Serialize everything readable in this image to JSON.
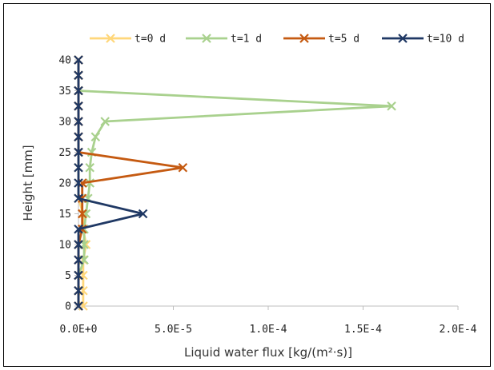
{
  "chart_data": {
    "type": "line",
    "title": "",
    "xlabel": "Liquid water flux [kg/(m²·s)]",
    "ylabel": "Height [mm]",
    "xlim": [
      0,
      0.0002
    ],
    "ylim": [
      0,
      40
    ],
    "x_ticks": [
      0,
      5e-05,
      0.0001,
      0.00015,
      0.0002
    ],
    "x_tick_labels": [
      "0.0E+0",
      "5.0E-5",
      "1.0E-4",
      "1.5E-4",
      "2.0E-4"
    ],
    "y_ticks": [
      0,
      5,
      10,
      15,
      20,
      25,
      30,
      35,
      40
    ],
    "y_tick_labels": [
      "0",
      "5",
      "10",
      "15",
      "20",
      "25",
      "30",
      "35",
      "40"
    ],
    "grid": false,
    "legend_position": "top",
    "series": [
      {
        "name": "t=0 d",
        "color": "#FFD77A",
        "marker": "x",
        "points": [
          [
            2.5e-06,
            0
          ],
          [
            2.5e-06,
            2.5
          ],
          [
            2.5e-06,
            5
          ],
          [
            2.5e-06,
            7.5
          ],
          [
            4e-06,
            10
          ],
          [
            2.5e-06,
            12.5
          ],
          [
            2.5e-06,
            15
          ],
          [
            0,
            17.5
          ],
          [
            0,
            20
          ],
          [
            0,
            22.5
          ],
          [
            0,
            25
          ],
          [
            0,
            27.5
          ],
          [
            0,
            30
          ],
          [
            0,
            32.5
          ],
          [
            0,
            35
          ],
          [
            0,
            37.5
          ],
          [
            0,
            40
          ]
        ]
      },
      {
        "name": "t=1 d",
        "color": "#A9D18E",
        "marker": "x",
        "points": [
          [
            0,
            0
          ],
          [
            0,
            2.5
          ],
          [
            0,
            5
          ],
          [
            3e-06,
            7.5
          ],
          [
            3e-06,
            10
          ],
          [
            3e-06,
            12.5
          ],
          [
            4e-06,
            15
          ],
          [
            5e-06,
            17.5
          ],
          [
            6e-06,
            20
          ],
          [
            6e-06,
            22.5
          ],
          [
            7e-06,
            25
          ],
          [
            9e-06,
            27.5
          ],
          [
            1.4e-05,
            30
          ],
          [
            0.000165,
            32.5
          ],
          [
            0,
            35
          ],
          [
            0,
            37.5
          ],
          [
            0,
            40
          ]
        ]
      },
      {
        "name": "t=5 d",
        "color": "#C55A11",
        "marker": "x",
        "points": [
          [
            0,
            0
          ],
          [
            0,
            2.5
          ],
          [
            0,
            5
          ],
          [
            0,
            7.5
          ],
          [
            0,
            10
          ],
          [
            2e-06,
            12.5
          ],
          [
            2e-06,
            15
          ],
          [
            2e-06,
            17.5
          ],
          [
            2e-06,
            20
          ],
          [
            5.5e-05,
            22.5
          ],
          [
            0,
            25
          ],
          [
            0,
            27.5
          ],
          [
            0,
            30
          ],
          [
            0,
            32.5
          ],
          [
            0,
            35
          ],
          [
            0,
            37.5
          ],
          [
            0,
            40
          ]
        ]
      },
      {
        "name": "t=10 d",
        "color": "#1F3864",
        "marker": "x",
        "points": [
          [
            0,
            0
          ],
          [
            0,
            2.5
          ],
          [
            0,
            5
          ],
          [
            0,
            7.5
          ],
          [
            0,
            10
          ],
          [
            0,
            12.5
          ],
          [
            3.4e-05,
            15
          ],
          [
            0,
            17.5
          ],
          [
            0,
            20
          ],
          [
            0,
            22.5
          ],
          [
            0,
            25
          ],
          [
            0,
            27.5
          ],
          [
            0,
            30
          ],
          [
            0,
            32.5
          ],
          [
            0,
            35
          ],
          [
            0,
            37.5
          ],
          [
            0,
            40
          ]
        ]
      }
    ]
  }
}
